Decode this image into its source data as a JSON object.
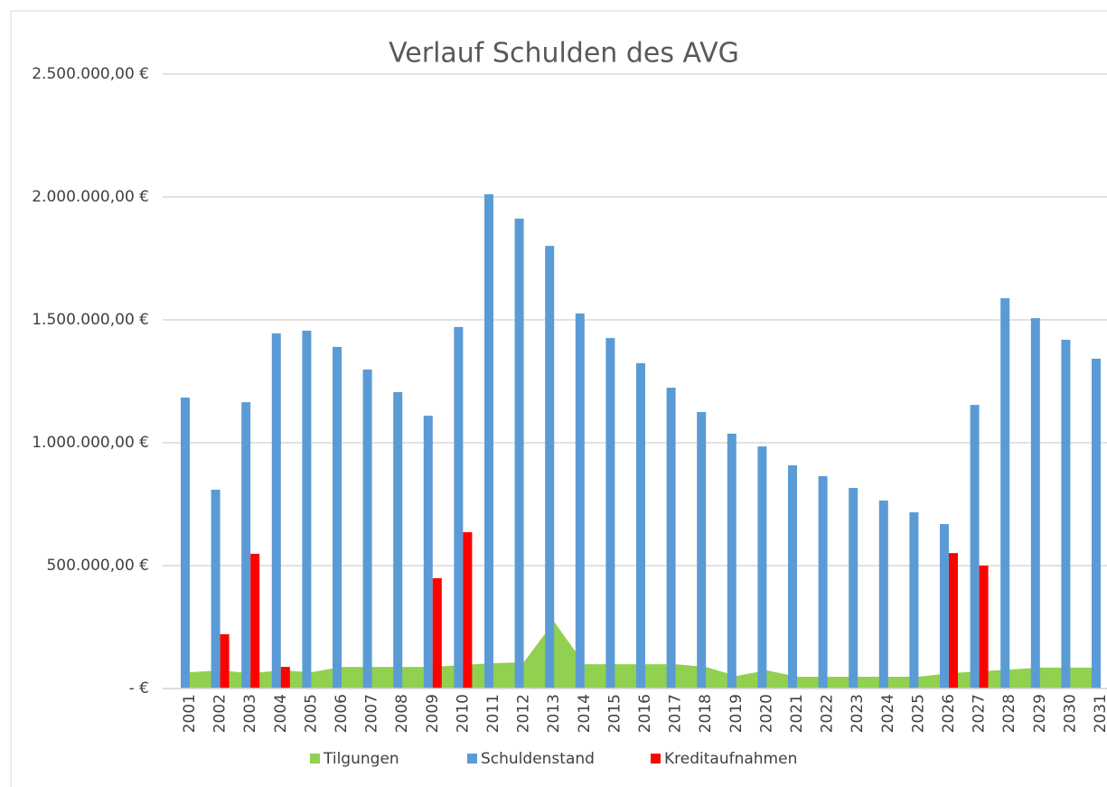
{
  "chart_data": {
    "type": "bar",
    "title": "Verlauf Schulden des AVG",
    "categories": [
      "2001",
      "2002",
      "2003",
      "2004",
      "2005",
      "2006",
      "2007",
      "2008",
      "2009",
      "2010",
      "2011",
      "2012",
      "2013",
      "2014",
      "2015",
      "2016",
      "2017",
      "2018",
      "2019",
      "2020",
      "2021",
      "2022",
      "2023",
      "2024",
      "2025",
      "2026",
      "2027",
      "2028",
      "2029",
      "2030",
      "2031"
    ],
    "series": [
      {
        "name": "Tilgungen",
        "type": "area",
        "color": "#92d050",
        "values": [
          66000,
          74000,
          62000,
          74000,
          66000,
          88000,
          88000,
          88000,
          88000,
          96000,
          103000,
          107000,
          272000,
          99000,
          99000,
          99000,
          99000,
          88000,
          51000,
          74000,
          48000,
          48000,
          48000,
          48000,
          48000,
          62000,
          70000,
          77000,
          85000,
          85000,
          85000
        ]
      },
      {
        "name": "Schuldenstand",
        "type": "bar",
        "color": "#5b9bd5",
        "values": [
          1184000,
          809000,
          1165000,
          1445000,
          1456000,
          1390000,
          1298000,
          1206000,
          1110000,
          1471000,
          2011000,
          1912000,
          1801000,
          1526000,
          1426000,
          1324000,
          1224000,
          1125000,
          1037000,
          985000,
          908000,
          864000,
          816000,
          765000,
          717000,
          669000,
          1154000,
          1588000,
          1507000,
          1419000,
          1342000
        ]
      },
      {
        "name": "Kreditaufnahmen",
        "type": "bar",
        "color": "#ff0000",
        "values": [
          null,
          221000,
          548000,
          88000,
          null,
          null,
          null,
          null,
          449000,
          636000,
          null,
          null,
          null,
          null,
          null,
          null,
          null,
          null,
          null,
          null,
          null,
          null,
          null,
          null,
          null,
          551000,
          500000,
          null,
          null,
          null,
          null
        ]
      }
    ],
    "ylim": [
      0,
      2500000
    ],
    "yticks": [
      {
        "value": 0,
        "label": "-   €"
      },
      {
        "value": 500000,
        "label": "500.000,00 €"
      },
      {
        "value": 1000000,
        "label": "1.000.000,00 €"
      },
      {
        "value": 1500000,
        "label": "1.500.000,00 €"
      },
      {
        "value": 2000000,
        "label": "2.000.000,00 €"
      },
      {
        "value": 2500000,
        "label": "2.500.000,00 €"
      }
    ],
    "grid": true,
    "legend": "bottom"
  }
}
